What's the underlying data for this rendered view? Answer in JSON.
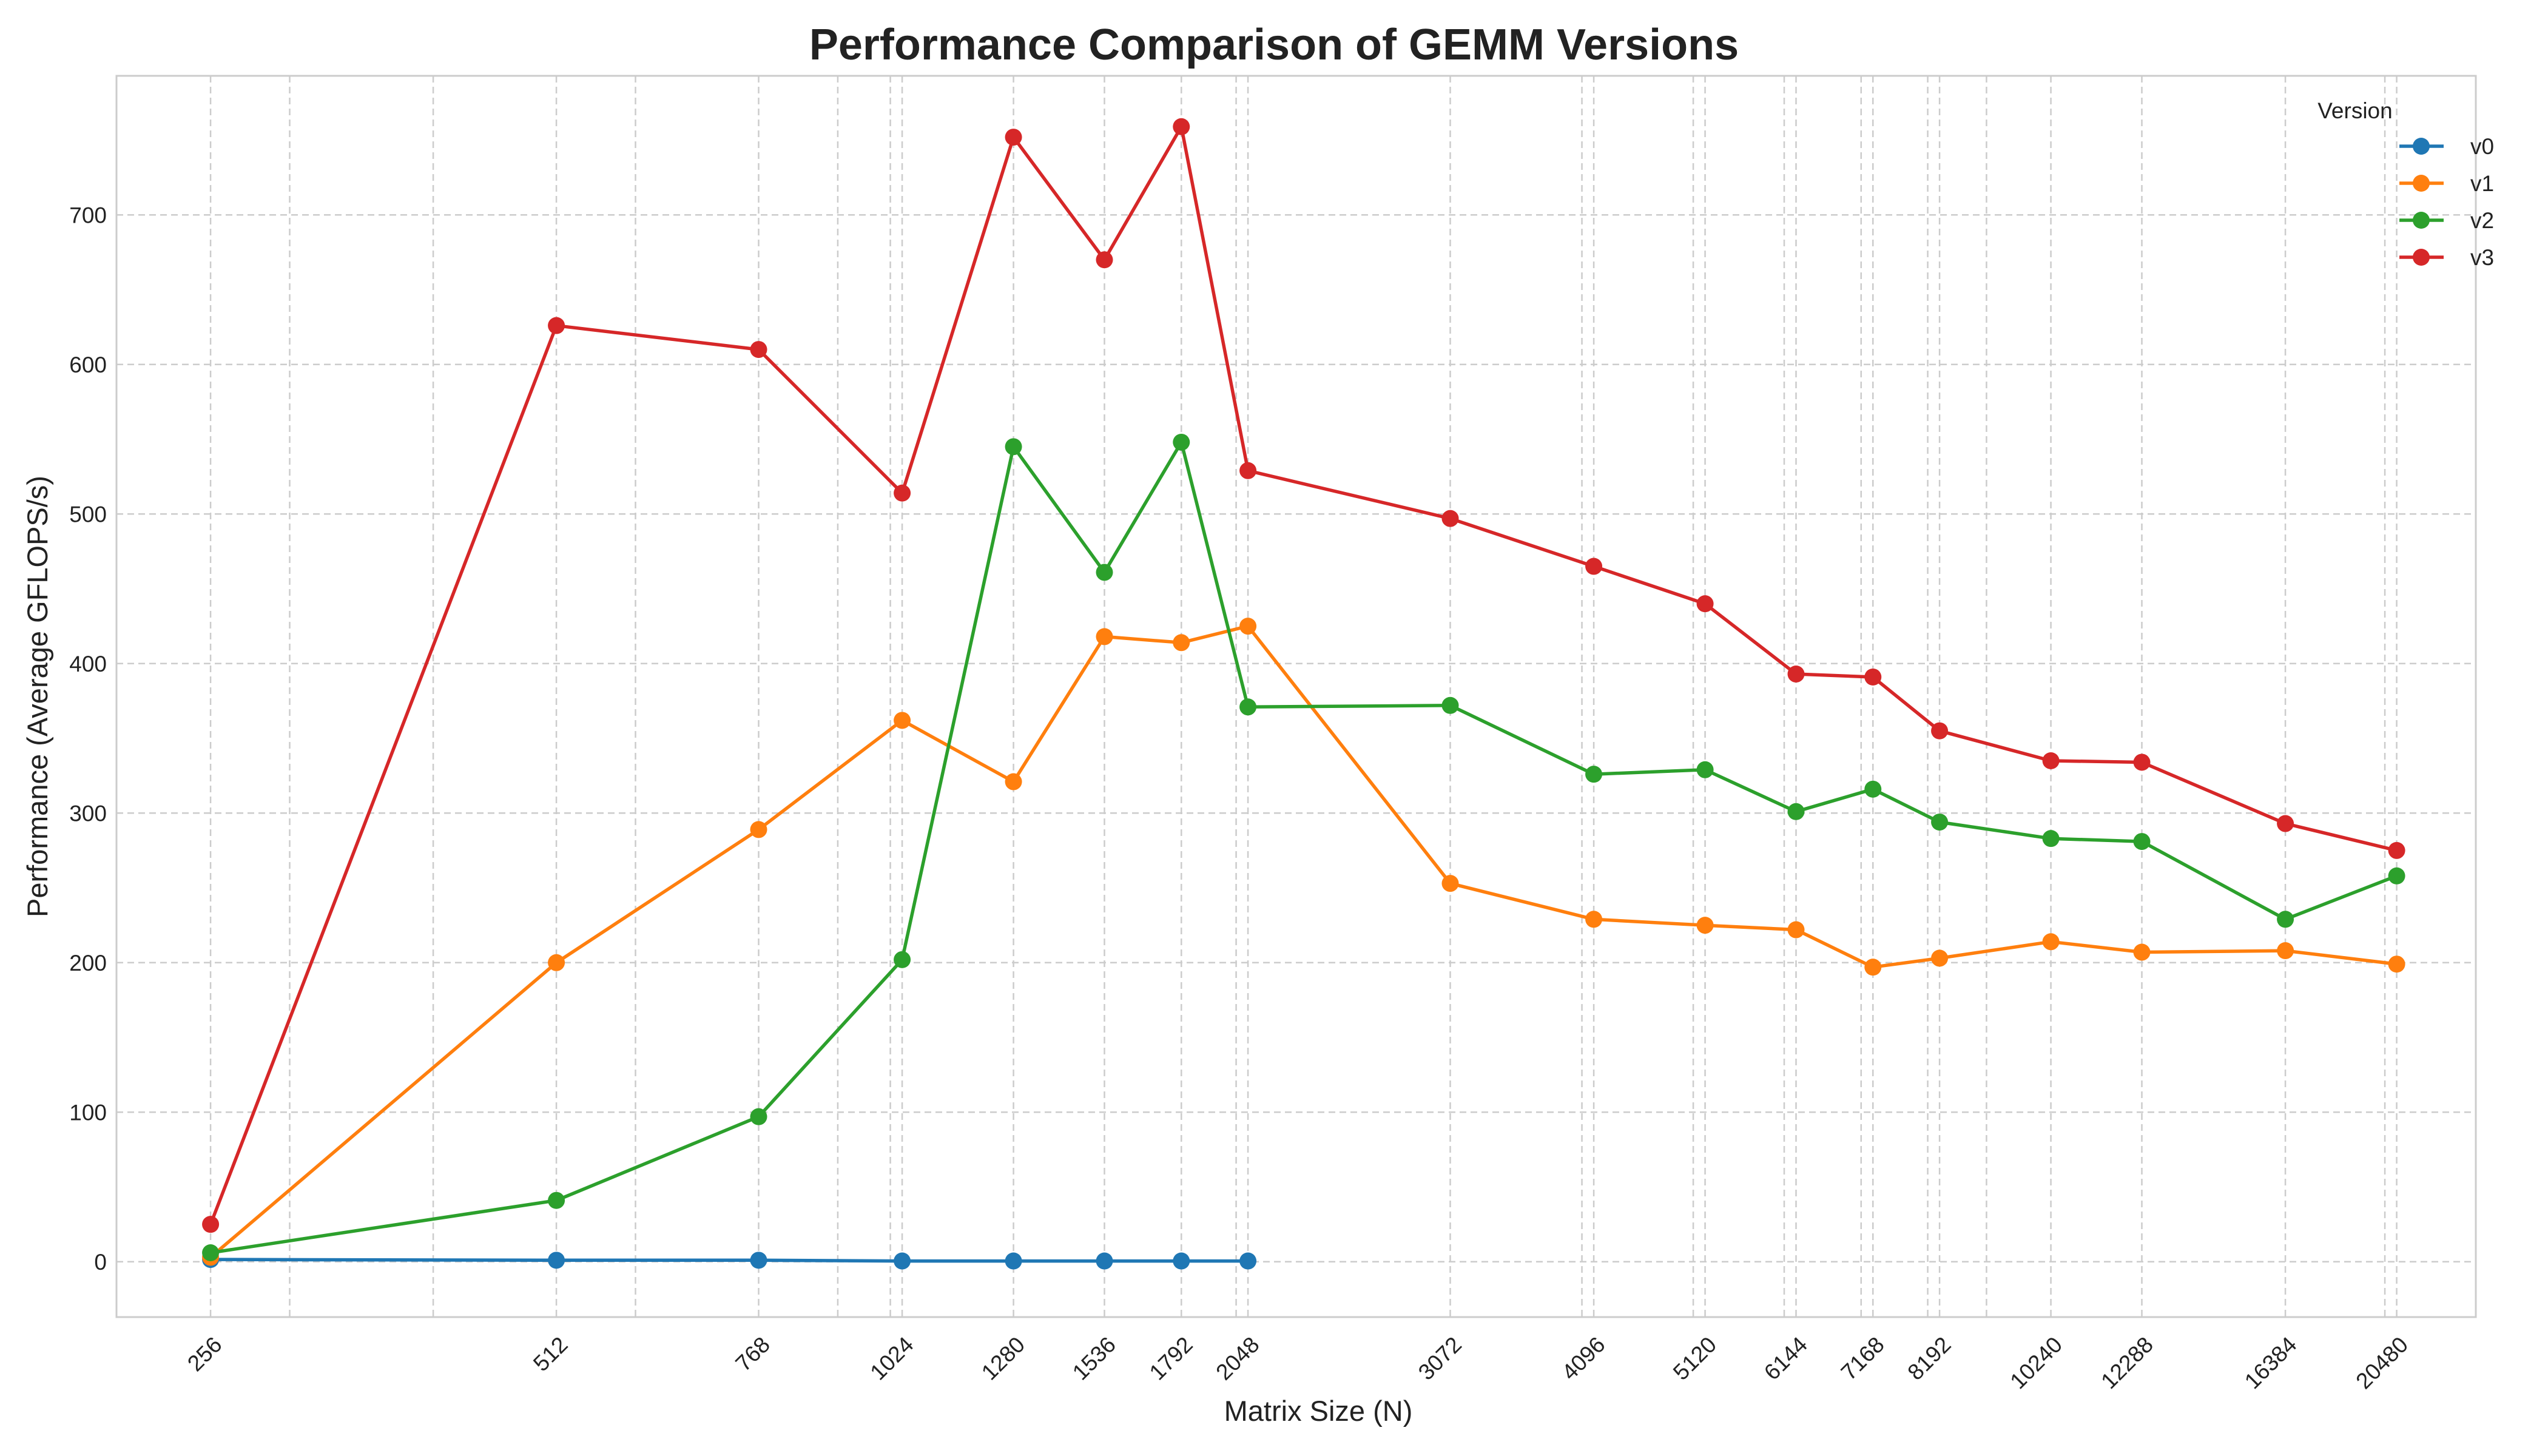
{
  "chart_data": {
    "type": "line",
    "title": "Performance Comparison of GEMM Versions",
    "xlabel": "Matrix Size (N)",
    "ylabel": "Performance (Average GFLOPS/s)",
    "x_scale": "log",
    "xlim": [
      212,
      24000
    ],
    "ylim": [
      -37,
      793
    ],
    "x_ticks": [
      256,
      512,
      768,
      1024,
      1280,
      1536,
      1792,
      2048,
      3072,
      4096,
      5120,
      6144,
      7168,
      8192,
      10240,
      12288,
      16384,
      20480
    ],
    "x_tick_labels": [
      "256",
      "512",
      "768",
      "1024",
      "1280",
      "1536",
      "1792",
      "2048",
      "3072",
      "4096",
      "5120",
      "6144",
      "7168",
      "8192",
      "10240",
      "12288",
      "16384",
      "20480"
    ],
    "y_ticks": [
      0,
      100,
      200,
      300,
      400,
      500,
      600,
      700
    ],
    "y_tick_labels": [
      "0",
      "100",
      "200",
      "300",
      "400",
      "500",
      "600",
      "700"
    ],
    "minor_x_gridlines": [
      300,
      400,
      600,
      900,
      1000,
      2000,
      4000,
      5000,
      6000,
      7000,
      8000,
      9000,
      20000
    ],
    "grid": true,
    "legend": {
      "title": "Version",
      "placement": "top-right"
    },
    "series": [
      {
        "name": "v0",
        "color": "#1f77b4",
        "x": [
          256,
          512,
          768,
          1024,
          1280,
          1536,
          1792,
          2048
        ],
        "values": [
          1.5,
          1.0,
          1.0,
          0.5,
          0.5,
          0.5,
          0.5,
          0.5
        ]
      },
      {
        "name": "v1",
        "color": "#ff7f0e",
        "x": [
          256,
          512,
          768,
          1024,
          1280,
          1536,
          1792,
          2048,
          3072,
          4096,
          5120,
          6144,
          7168,
          8192,
          10240,
          12288,
          16384,
          20480
        ],
        "values": [
          3,
          200,
          289,
          362,
          321,
          418,
          414,
          425,
          253,
          229,
          225,
          222,
          197,
          203,
          214,
          207,
          208,
          199
        ]
      },
      {
        "name": "v2",
        "color": "#2ca02c",
        "x": [
          256,
          512,
          768,
          1024,
          1280,
          1536,
          1792,
          2048,
          3072,
          4096,
          5120,
          6144,
          7168,
          8192,
          10240,
          12288,
          16384,
          20480
        ],
        "values": [
          6,
          41,
          97,
          202,
          545,
          461,
          548,
          371,
          372,
          326,
          329,
          301,
          316,
          294,
          283,
          281,
          229,
          258
        ]
      },
      {
        "name": "v3",
        "color": "#d62728",
        "x": [
          256,
          512,
          768,
          1024,
          1280,
          1536,
          1792,
          2048,
          3072,
          4096,
          5120,
          6144,
          7168,
          8192,
          10240,
          12288,
          16384,
          20480
        ],
        "values": [
          25,
          626,
          610,
          514,
          752,
          670,
          759,
          529,
          497,
          465,
          440,
          393,
          391,
          355,
          335,
          334,
          293,
          275
        ]
      }
    ]
  }
}
